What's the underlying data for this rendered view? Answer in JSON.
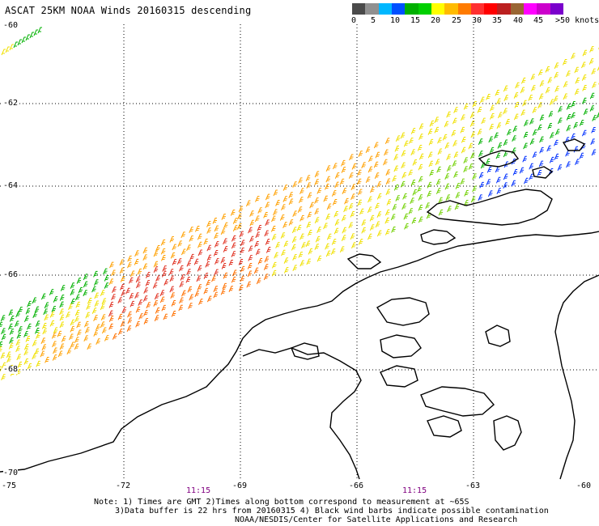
{
  "title": "ASCAT 25KM NOAA Winds 20160315 descending",
  "legend": {
    "labels": [
      "0",
      "5",
      "10",
      "15",
      "20",
      "25",
      "30",
      "35",
      "40",
      "45",
      ">50 knots"
    ],
    "colors": [
      "#4a4a4a",
      "#909090",
      "#00b7ff",
      "#0050ff",
      "#00b000",
      "#00d000",
      "#ffff00",
      "#ffbb00",
      "#ff7b00",
      "#ff3030",
      "#ff0000",
      "#bb2020",
      "#996633",
      "#ff00ff",
      "#cc00cc",
      "#7a00cc"
    ]
  },
  "axes": {
    "lat_labels": [
      "-60",
      "-62",
      "-64",
      "-66",
      "-68",
      "-70"
    ],
    "lon_labels": [
      "-75",
      "-72",
      "-69",
      "-66",
      "-63",
      "-60"
    ]
  },
  "time_labels": [
    "11:15",
    "11:15"
  ],
  "notes": [
    "Note: 1) Times are GMT 2)Times along bottom correspond to measurement at ~65S",
    "3)Data buffer is 22 hrs from 20160315 4) Black wind barbs indicate possible contamination",
    "NOAA/NESDIS/Center for Satellite Applications and Research"
  ]
}
